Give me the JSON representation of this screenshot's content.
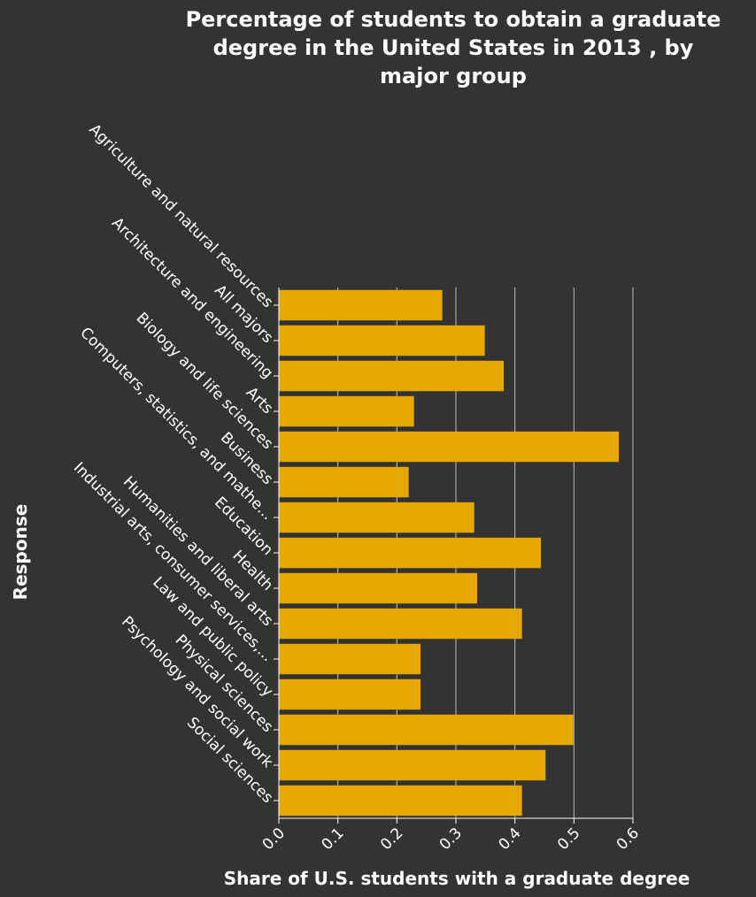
{
  "chart_data": {
    "type": "bar",
    "orientation": "horizontal",
    "title": "Percentage of students to obtain a graduate degree in the United States in 2013 , by major group",
    "title_lines": [
      "Percentage of students to obtain a graduate",
      "degree in the United States in 2013 , by",
      "major group"
    ],
    "xlabel": "Share of U.S. students with a graduate degree",
    "ylabel": "Response",
    "xlim": [
      0,
      0.6
    ],
    "x_ticks": [
      "0.0",
      "0.1",
      "0.2",
      "0.3",
      "0.4",
      "0.5",
      "0.6"
    ],
    "grid": "vertical",
    "categories": [
      "Agriculture and natural resources",
      "All majors",
      "Architecture and engineering",
      "Arts",
      "Biology and life sciences",
      "Business",
      "Computers, statistics, and mathe...",
      "Education",
      "Health",
      "Humanities and liberal arts",
      "Industrial arts, consumer services,...",
      "Law and public policy",
      "Physical sciences",
      "Psychology and social work",
      "Social sciences"
    ],
    "values": [
      0.277,
      0.349,
      0.381,
      0.229,
      0.576,
      0.22,
      0.331,
      0.444,
      0.336,
      0.412,
      0.24,
      0.24,
      0.499,
      0.452,
      0.412
    ],
    "colors": {
      "bar": "#e5a800",
      "background": "#333333",
      "grid": "#bbbbbb",
      "text": "#ffffff"
    }
  }
}
